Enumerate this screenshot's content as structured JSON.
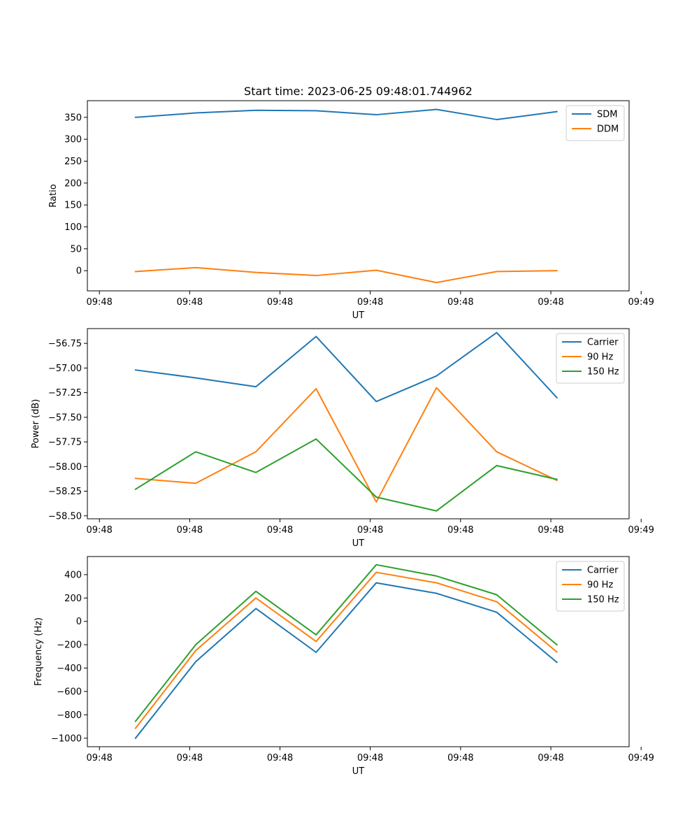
{
  "title": "Start time: 2023-06-25 09:48:01.744962",
  "colors": {
    "blue": "#1f77b4",
    "orange": "#ff7f0e",
    "green": "#2ca02c"
  },
  "chart_data": [
    {
      "type": "line",
      "title": "Start time: 2023-06-25 09:48:01.744962",
      "xlabel": "UT",
      "ylabel": "Ratio",
      "x_tick_labels": [
        "09:48",
        "09:48",
        "09:48",
        "09:48",
        "09:48",
        "09:48",
        "09:49"
      ],
      "y_ticks": [
        0,
        50,
        100,
        150,
        200,
        250,
        300,
        350
      ],
      "ylim": [
        -46,
        388
      ],
      "x": [
        1,
        2,
        3,
        4,
        5,
        6,
        7,
        8
      ],
      "xlim": [
        0.2,
        9.2
      ],
      "legend": "top-right",
      "series": [
        {
          "name": "SDM",
          "color": "#1f77b4",
          "values": [
            350,
            360,
            366,
            365,
            356,
            368,
            345,
            363
          ]
        },
        {
          "name": "DDM",
          "color": "#ff7f0e",
          "values": [
            -2,
            7,
            -4,
            -11,
            1,
            -27,
            -2,
            0
          ]
        }
      ]
    },
    {
      "type": "line",
      "xlabel": "UT",
      "ylabel": "Power (dB)",
      "x_tick_labels": [
        "09:48",
        "09:48",
        "09:48",
        "09:48",
        "09:48",
        "09:48",
        "09:49"
      ],
      "y_ticks": [
        -58.5,
        -58.25,
        -58.0,
        -57.75,
        -57.5,
        -57.25,
        -57.0,
        -56.75
      ],
      "y_tick_labels": [
        "−58.50",
        "−58.25",
        "−58.00",
        "−57.75",
        "−57.50",
        "−57.25",
        "−57.00",
        "−56.75"
      ],
      "ylim": [
        -58.53,
        -56.6
      ],
      "x": [
        1,
        2,
        3,
        4,
        5,
        6,
        7,
        8
      ],
      "xlim": [
        0.2,
        9.2
      ],
      "legend": "top-right",
      "series": [
        {
          "name": "Carrier",
          "color": "#1f77b4",
          "values": [
            -57.02,
            -57.1,
            -57.19,
            -56.68,
            -57.34,
            -57.08,
            -56.64,
            -57.3
          ]
        },
        {
          "name": "90 Hz",
          "color": "#ff7f0e",
          "values": [
            -58.12,
            -58.17,
            -57.85,
            -57.21,
            -58.36,
            -57.2,
            -57.85,
            -58.14
          ]
        },
        {
          "name": "150 Hz",
          "color": "#2ca02c",
          "values": [
            -58.23,
            -57.85,
            -58.06,
            -57.72,
            -58.31,
            -58.45,
            -57.99,
            -58.13
          ]
        }
      ]
    },
    {
      "type": "line",
      "xlabel": "UT",
      "ylabel": "Frequency (Hz)",
      "x_tick_labels": [
        "09:48",
        "09:48",
        "09:48",
        "09:48",
        "09:48",
        "09:48",
        "09:49"
      ],
      "y_ticks": [
        -1000,
        -800,
        -600,
        -400,
        -200,
        0,
        200,
        400
      ],
      "y_tick_labels": [
        "−1000",
        "−800",
        "−600",
        "−400",
        "−200",
        "0",
        "200",
        "400"
      ],
      "ylim": [
        -1073,
        555
      ],
      "x": [
        1,
        2,
        3,
        4,
        5,
        6,
        7,
        8
      ],
      "xlim": [
        0.2,
        9.2
      ],
      "legend": "top-right",
      "series": [
        {
          "name": "Carrier",
          "color": "#1f77b4",
          "values": [
            -1000,
            -345,
            110,
            -265,
            330,
            240,
            78,
            -350
          ]
        },
        {
          "name": "90 Hz",
          "color": "#ff7f0e",
          "values": [
            -915,
            -250,
            200,
            -172,
            420,
            330,
            168,
            -262
          ]
        },
        {
          "name": "150 Hz",
          "color": "#2ca02c",
          "values": [
            -855,
            -200,
            257,
            -115,
            485,
            388,
            228,
            -200
          ]
        }
      ]
    }
  ]
}
